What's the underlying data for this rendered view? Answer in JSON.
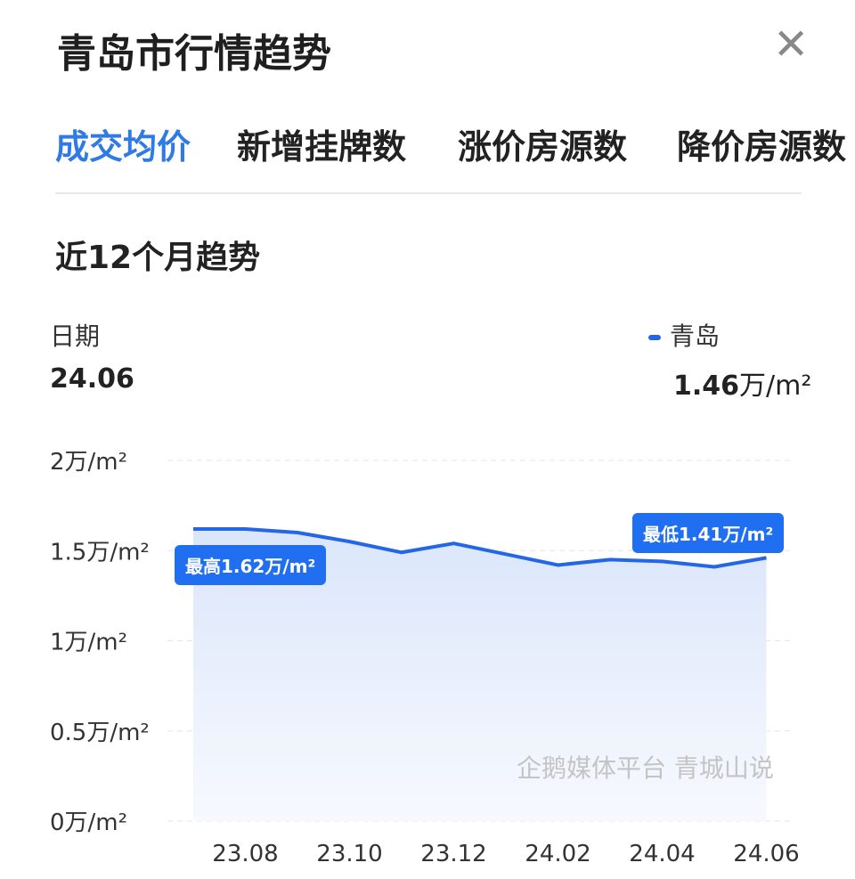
{
  "header": {
    "title": "青岛市行情趋势",
    "close_icon": "close-icon"
  },
  "tabs": [
    {
      "label": "成交均价",
      "active": true
    },
    {
      "label": "新增挂牌数"
    },
    {
      "label": "涨价房源数"
    },
    {
      "label": "降价房源数"
    }
  ],
  "section_title": "近12个月趋势",
  "readout": {
    "date_label": "日期",
    "date_value": "24.06",
    "series_name": "青岛",
    "value": "1.46",
    "unit": "万/m²"
  },
  "watermark": "企鹅媒体平台 青城山说",
  "chart_data": {
    "type": "area",
    "x": [
      "23.07",
      "23.08",
      "23.09",
      "23.10",
      "23.11",
      "23.12",
      "24.01",
      "24.02",
      "24.03",
      "24.04",
      "24.05",
      "24.06"
    ],
    "x_tick_labels": [
      "23.08",
      "23.10",
      "23.12",
      "24.02",
      "24.04",
      "24.06"
    ],
    "series": [
      {
        "name": "青岛",
        "values": [
          1.62,
          1.62,
          1.6,
          1.55,
          1.49,
          1.54,
          1.48,
          1.42,
          1.45,
          1.44,
          1.41,
          1.46
        ],
        "color": "#2467e6"
      }
    ],
    "y_tick_labels": [
      "0万/m²",
      "0.5万/m²",
      "1万/m²",
      "1.5万/m²",
      "2万/m²"
    ],
    "ylim": [
      0,
      2
    ],
    "grid": true,
    "annotations": {
      "max": {
        "index": 1,
        "label": "最高1.62万/m²"
      },
      "min": {
        "index": 10,
        "label": "最低1.41万/m²"
      }
    }
  }
}
